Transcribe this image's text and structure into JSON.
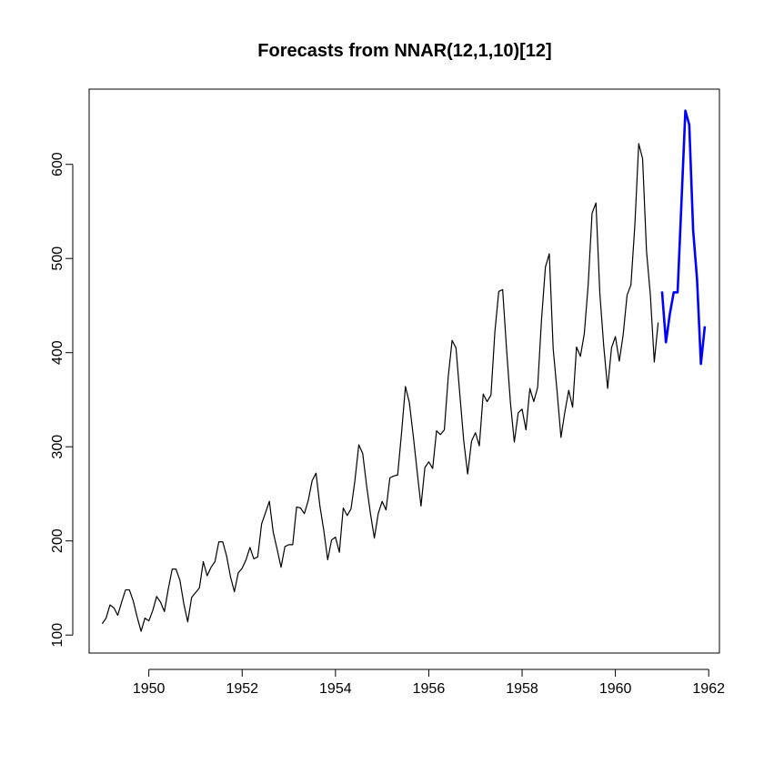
{
  "chart_data": {
    "type": "line",
    "title": "Forecasts from NNAR(12,1,10)[12]",
    "xlabel": "",
    "ylabel": "",
    "xlim": [
      1948.72,
      1962.23
    ],
    "ylim": [
      80.9,
      679.9
    ],
    "x_ticks": [
      1950,
      1952,
      1954,
      1956,
      1958,
      1960,
      1962
    ],
    "y_ticks": [
      100,
      200,
      300,
      400,
      500,
      600
    ],
    "grid": false,
    "legend": "none",
    "series": [
      {
        "color": "#000000",
        "x_start": 1949.0,
        "x_step": 0.0833333,
        "values": [
          112,
          118,
          132,
          129,
          121,
          135,
          148,
          148,
          136,
          119,
          104,
          118,
          115,
          126,
          141,
          135,
          125,
          149,
          170,
          170,
          158,
          133,
          114,
          140,
          145,
          150,
          178,
          163,
          172,
          178,
          199,
          199,
          184,
          162,
          146,
          166,
          171,
          180,
          193,
          181,
          183,
          218,
          230,
          242,
          209,
          191,
          172,
          194,
          196,
          196,
          236,
          235,
          229,
          243,
          264,
          272,
          237,
          211,
          180,
          201,
          204,
          188,
          235,
          227,
          234,
          264,
          302,
          293,
          259,
          229,
          203,
          229,
          242,
          233,
          267,
          269,
          270,
          315,
          364,
          347,
          312,
          274,
          237,
          278,
          284,
          277,
          317,
          313,
          318,
          374,
          413,
          405,
          355,
          306,
          271,
          306,
          315,
          301,
          356,
          348,
          355,
          422,
          465,
          467,
          404,
          347,
          305,
          336,
          340,
          318,
          362,
          348,
          363,
          435,
          491,
          505,
          404,
          359,
          310,
          337,
          360,
          342,
          406,
          396,
          420,
          472,
          548,
          559,
          463,
          407,
          362,
          405,
          417,
          391,
          419,
          461,
          472,
          535,
          622,
          606,
          508,
          461,
          390,
          432
        ]
      },
      {
        "color": "#0000ff",
        "x_start": 1961.0,
        "x_step": 0.0833333,
        "values": [
          465,
          411,
          441,
          464,
          464,
          560,
          657,
          642,
          530,
          478,
          388,
          428
        ]
      }
    ]
  }
}
